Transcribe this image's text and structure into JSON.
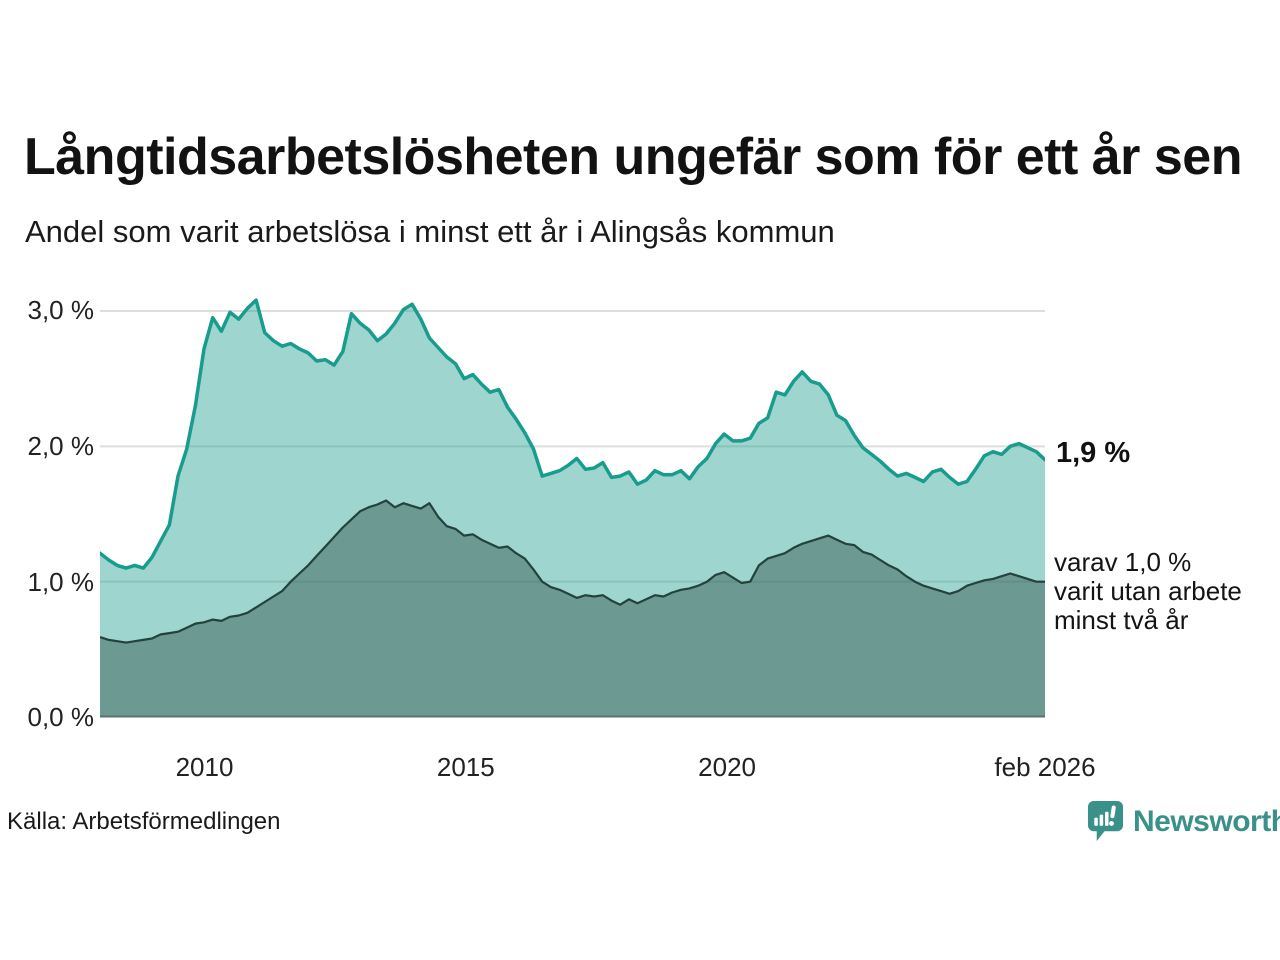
{
  "header": {
    "title": "Långtidsarbetslösheten ungefär som för ett år sen",
    "subtitle": "Andel som varit arbetslösa i minst ett år i Alingsås kommun"
  },
  "chart_data": {
    "type": "area",
    "title": "Långtidsarbetslösheten ungefär som för ett år sen",
    "subtitle": "Andel som varit arbetslösa i minst ett år i Alingsås kommun",
    "grid": "horizontal",
    "legend_position": "none",
    "x_start": 2008.0,
    "x_end": 2026.083,
    "ylim": [
      0,
      3.118
    ],
    "y_ticks": [
      0,
      1,
      2,
      3
    ],
    "y_tick_labels_desc": [
      "3,0 %",
      "2,0 %",
      "1,0 %",
      "0,0 %"
    ],
    "x_tick_positions": [
      2010,
      2015,
      2020,
      2026.083
    ],
    "x_tick_labels": [
      "2010",
      "2015",
      "2020",
      "feb 2026"
    ],
    "series": [
      {
        "name": "arbetslösa minst ett år",
        "line_color": "#189C8D",
        "fill_color": "rgba(26,156,140,0.42)",
        "last_value": 1.9,
        "values": [
          1.21,
          1.16,
          1.12,
          1.1,
          1.12,
          1.1,
          1.18,
          1.3,
          1.42,
          1.78,
          1.98,
          2.3,
          2.72,
          2.95,
          2.85,
          2.99,
          2.94,
          3.02,
          3.08,
          2.84,
          2.78,
          2.74,
          2.76,
          2.72,
          2.69,
          2.63,
          2.64,
          2.6,
          2.7,
          2.98,
          2.91,
          2.86,
          2.78,
          2.83,
          2.91,
          3.01,
          3.05,
          2.94,
          2.8,
          2.73,
          2.66,
          2.61,
          2.5,
          2.53,
          2.46,
          2.4,
          2.42,
          2.29,
          2.2,
          2.1,
          1.98,
          1.78,
          1.8,
          1.82,
          1.86,
          1.91,
          1.83,
          1.84,
          1.88,
          1.77,
          1.78,
          1.81,
          1.72,
          1.75,
          1.82,
          1.79,
          1.79,
          1.82,
          1.76,
          1.85,
          1.91,
          2.02,
          2.09,
          2.04,
          2.04,
          2.06,
          2.17,
          2.21,
          2.4,
          2.38,
          2.48,
          2.55,
          2.48,
          2.46,
          2.38,
          2.23,
          2.19,
          2.08,
          1.99,
          1.94,
          1.89,
          1.83,
          1.78,
          1.8,
          1.77,
          1.74,
          1.81,
          1.83,
          1.77,
          1.72,
          1.74,
          1.83,
          1.93,
          1.96,
          1.94,
          2.0,
          2.02,
          1.99,
          1.96,
          1.9
        ]
      },
      {
        "name": "varav arbetslösa minst två år",
        "line_color": "#24423C",
        "fill_color": "rgba(52,88,78,0.48)",
        "last_value": 1.0,
        "values": [
          0.59,
          0.57,
          0.56,
          0.55,
          0.56,
          0.57,
          0.58,
          0.61,
          0.62,
          0.63,
          0.66,
          0.69,
          0.7,
          0.72,
          0.71,
          0.74,
          0.75,
          0.77,
          0.81,
          0.85,
          0.89,
          0.93,
          1.0,
          1.06,
          1.12,
          1.19,
          1.26,
          1.33,
          1.4,
          1.46,
          1.52,
          1.55,
          1.57,
          1.6,
          1.55,
          1.58,
          1.56,
          1.54,
          1.58,
          1.48,
          1.41,
          1.39,
          1.34,
          1.35,
          1.31,
          1.28,
          1.25,
          1.26,
          1.21,
          1.17,
          1.09,
          1.0,
          0.96,
          0.94,
          0.91,
          0.88,
          0.9,
          0.89,
          0.9,
          0.86,
          0.83,
          0.87,
          0.84,
          0.87,
          0.9,
          0.89,
          0.92,
          0.94,
          0.95,
          0.97,
          1.0,
          1.05,
          1.07,
          1.03,
          0.99,
          1.0,
          1.12,
          1.17,
          1.19,
          1.21,
          1.25,
          1.28,
          1.3,
          1.32,
          1.34,
          1.31,
          1.28,
          1.27,
          1.22,
          1.2,
          1.16,
          1.12,
          1.09,
          1.04,
          1.0,
          0.97,
          0.95,
          0.93,
          0.91,
          0.93,
          0.97,
          0.99,
          1.01,
          1.02,
          1.04,
          1.06,
          1.04,
          1.02,
          1.0,
          1.0
        ]
      }
    ],
    "annotations": {
      "last_value_label": "1,9 %",
      "secondary_lines": [
        "varav 1,0 %",
        "varit utan arbete",
        "minst två år"
      ]
    }
  },
  "footer": {
    "source": "Källa: Arbetsförmedlingen",
    "logo_text": "Newsworthy"
  },
  "colors": {
    "accent_teal": "#189C8D",
    "light_area": "#9FD5CE",
    "dark_area": "#6C9991",
    "dark_line": "#24423C",
    "gridline": "#DEDEDE",
    "axis_line": "#5E726D",
    "logo_teal": "#3A9189"
  }
}
